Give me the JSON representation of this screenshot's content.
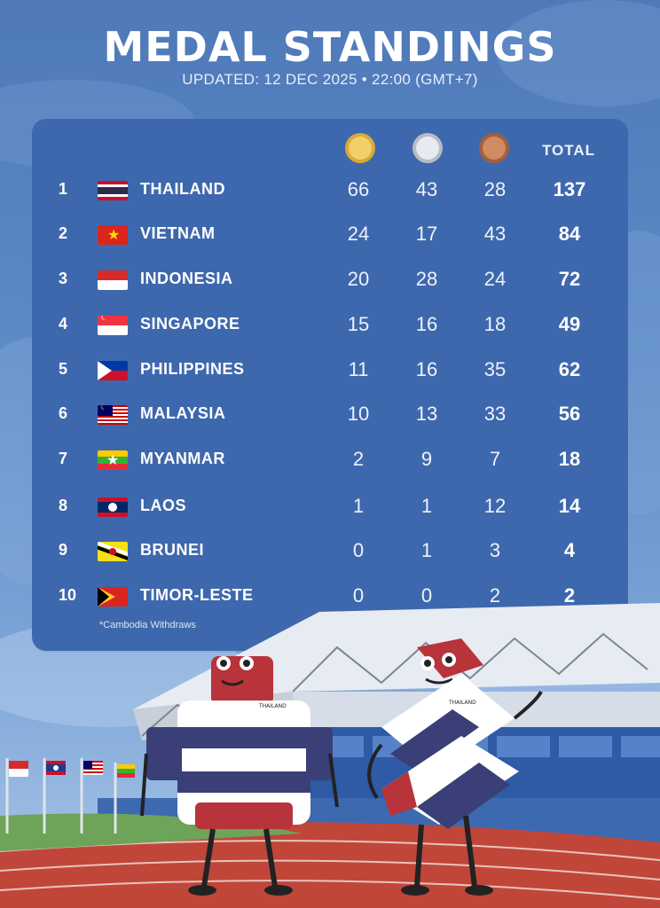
{
  "header": {
    "title": "MEDAL STANDINGS",
    "subtitle": "UPDATED: 12 DEC 2025 • 22:00 (GMT+7)"
  },
  "columns": {
    "gold_icon": "gold-medal-icon",
    "silver_icon": "silver-medal-icon",
    "bronze_icon": "bronze-medal-icon",
    "total_label": "TOTAL"
  },
  "rows": [
    {
      "rank": "1",
      "country": "THAILAND",
      "flag": "thailand-flag",
      "gold": "66",
      "silver": "43",
      "bronze": "28",
      "total": "137"
    },
    {
      "rank": "2",
      "country": "VIETNAM",
      "flag": "vietnam-flag",
      "gold": "24",
      "silver": "17",
      "bronze": "43",
      "total": "84"
    },
    {
      "rank": "3",
      "country": "INDONESIA",
      "flag": "indonesia-flag",
      "gold": "20",
      "silver": "28",
      "bronze": "24",
      "total": "72"
    },
    {
      "rank": "4",
      "country": "SINGAPORE",
      "flag": "singapore-flag",
      "gold": "15",
      "silver": "16",
      "bronze": "18",
      "total": "49"
    },
    {
      "rank": "5",
      "country": "PHILIPPINES",
      "flag": "philippines-flag",
      "gold": "11",
      "silver": "16",
      "bronze": "35",
      "total": "62"
    },
    {
      "rank": "6",
      "country": "MALAYSIA",
      "flag": "malaysia-flag",
      "gold": "10",
      "silver": "13",
      "bronze": "33",
      "total": "56"
    },
    {
      "rank": "7",
      "country": "MYANMAR",
      "flag": "myanmar-flag",
      "gold": "2",
      "silver": "9",
      "bronze": "7",
      "total": "18"
    },
    {
      "rank": "8",
      "country": "LAOS",
      "flag": "laos-flag",
      "gold": "1",
      "silver": "1",
      "bronze": "12",
      "total": "14"
    },
    {
      "rank": "9",
      "country": "BRUNEI",
      "flag": "brunei-flag",
      "gold": "0",
      "silver": "1",
      "bronze": "3",
      "total": "4"
    },
    {
      "rank": "10",
      "country": "TIMOR-LESTE",
      "flag": "timor-leste-flag",
      "gold": "0",
      "silver": "0",
      "bronze": "2",
      "total": "2"
    }
  ],
  "footnote": "*Cambodia Withdraws",
  "colors": {
    "background": "#5b88c6",
    "panel": "#3e68ad",
    "track": "#c0463a",
    "mascot_red": "#b8333a",
    "mascot_navy": "#3a3f78"
  },
  "illustration": {
    "mascots": [
      "thailand-mascot-left",
      "thailand-mascot-right"
    ],
    "mascot_logo_text": "THAILAND",
    "flags_poles": [
      "indonesia-flag",
      "laos-flag",
      "malaysia-flag",
      "myanmar-flag"
    ]
  }
}
